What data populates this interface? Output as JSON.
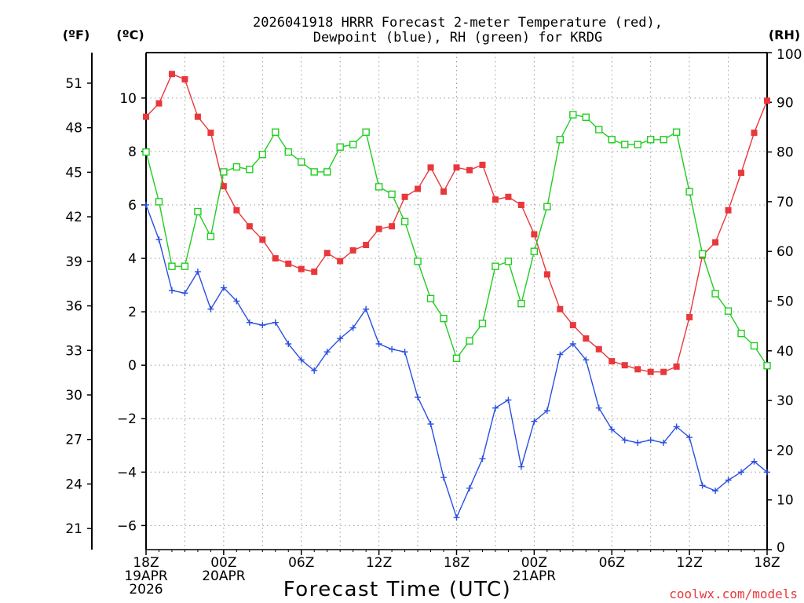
{
  "chart_data": {
    "type": "line",
    "title_line1": "2026041918 HRRR Forecast 2-meter Temperature (red),",
    "title_line2": "Dewpoint (blue), RH (green) for KRDG",
    "xlabel": "Forecast Time (UTC)",
    "credit": "coolwx.com/models",
    "left_outer_unit": "(ºF)",
    "left_inner_unit": "(ºC)",
    "right_unit": "(RH)",
    "x_range_hours": [
      0,
      48
    ],
    "celsius_range": [
      -6.9,
      11.7
    ],
    "rh_range": [
      0,
      100
    ],
    "celsius_ticks": [
      10,
      8,
      6,
      4,
      2,
      0,
      -2,
      -4,
      -6
    ],
    "fahrenheit_ticks": [
      51,
      48,
      45,
      42,
      39,
      36,
      33,
      30,
      27,
      24,
      21
    ],
    "rh_ticks": [
      100,
      90,
      80,
      70,
      60,
      50,
      40,
      30,
      20,
      10,
      0
    ],
    "x_ticks": [
      {
        "hour": 0,
        "lines": [
          "18Z",
          "19APR",
          "2026"
        ]
      },
      {
        "hour": 6,
        "lines": [
          "00Z",
          "20APR"
        ]
      },
      {
        "hour": 12,
        "lines": [
          "06Z"
        ]
      },
      {
        "hour": 18,
        "lines": [
          "12Z"
        ]
      },
      {
        "hour": 24,
        "lines": [
          "18Z"
        ]
      },
      {
        "hour": 30,
        "lines": [
          "00Z",
          "21APR"
        ]
      },
      {
        "hour": 36,
        "lines": [
          "06Z"
        ]
      },
      {
        "hour": 42,
        "lines": [
          "12Z"
        ]
      },
      {
        "hour": 48,
        "lines": [
          "18Z"
        ]
      }
    ],
    "series": [
      {
        "name": "Temperature (°C)",
        "color": "#e8383c",
        "marker": "filled-square",
        "axis": "celsius",
        "values": [
          9.3,
          9.8,
          10.9,
          10.7,
          9.3,
          8.7,
          6.7,
          5.8,
          5.2,
          4.7,
          4.0,
          3.8,
          3.6,
          3.5,
          4.2,
          3.9,
          4.3,
          4.5,
          5.1,
          5.2,
          6.3,
          6.6,
          7.4,
          6.5,
          7.4,
          7.3,
          7.5,
          6.2,
          6.3,
          6.0,
          4.9,
          3.4,
          2.1,
          1.5,
          1.0,
          0.6,
          0.15,
          0.0,
          -0.15,
          -0.25,
          -0.25,
          -0.05,
          1.8,
          4.1,
          4.6,
          5.8,
          7.2,
          8.7,
          9.9
        ]
      },
      {
        "name": "Dewpoint (°C)",
        "color": "#2a4fe0",
        "marker": "plus",
        "axis": "celsius",
        "values": [
          6.0,
          4.7,
          2.8,
          2.7,
          3.5,
          2.1,
          2.9,
          2.4,
          1.6,
          1.5,
          1.6,
          0.8,
          0.2,
          -0.2,
          0.5,
          1.0,
          1.4,
          2.1,
          0.8,
          0.6,
          0.5,
          -1.2,
          -2.2,
          -4.2,
          -5.7,
          -4.6,
          -3.5,
          -1.6,
          -1.3,
          -3.8,
          -2.1,
          -1.7,
          0.4,
          0.8,
          0.2,
          -1.6,
          -2.4,
          -2.8,
          -2.9,
          -2.8,
          -2.9,
          -2.3,
          -2.7,
          -4.5,
          -4.7,
          -4.3,
          -4.0,
          -3.6,
          -4.0
        ]
      },
      {
        "name": "RH (%)",
        "color": "#22cc22",
        "marker": "open-square",
        "axis": "rh",
        "values": [
          80,
          70,
          57,
          57,
          68,
          63,
          76,
          77,
          76.5,
          79.5,
          84,
          80,
          78,
          76,
          76,
          81,
          81.5,
          84,
          73,
          71.5,
          66,
          58,
          50.5,
          46.5,
          38.5,
          42,
          45.5,
          57,
          58,
          49.5,
          60,
          69,
          82.5,
          87.5,
          87,
          84.5,
          82.5,
          81.5,
          81.5,
          82.5,
          82.5,
          84,
          72,
          59.5,
          51.5,
          48,
          43.5,
          41,
          37
        ]
      }
    ]
  }
}
